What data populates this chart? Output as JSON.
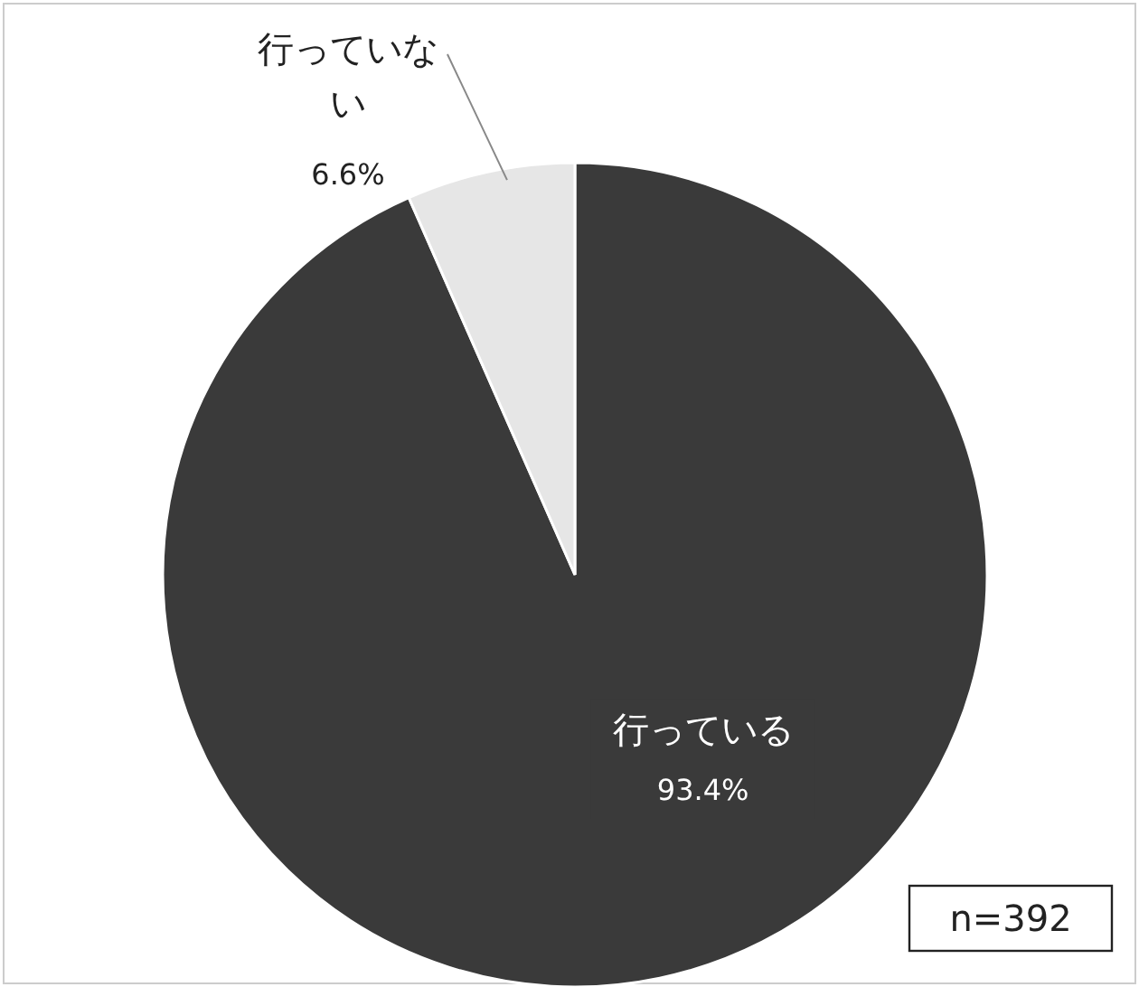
{
  "chart_data": {
    "type": "pie",
    "categories": [
      "行っている",
      "行っていない"
    ],
    "values": [
      93.4,
      6.6
    ],
    "colors": [
      "#3a3a3a",
      "#e6e6e6"
    ],
    "value_labels": [
      "93.4%",
      "6.6%"
    ],
    "annotations": [
      "n=392"
    ]
  }
}
